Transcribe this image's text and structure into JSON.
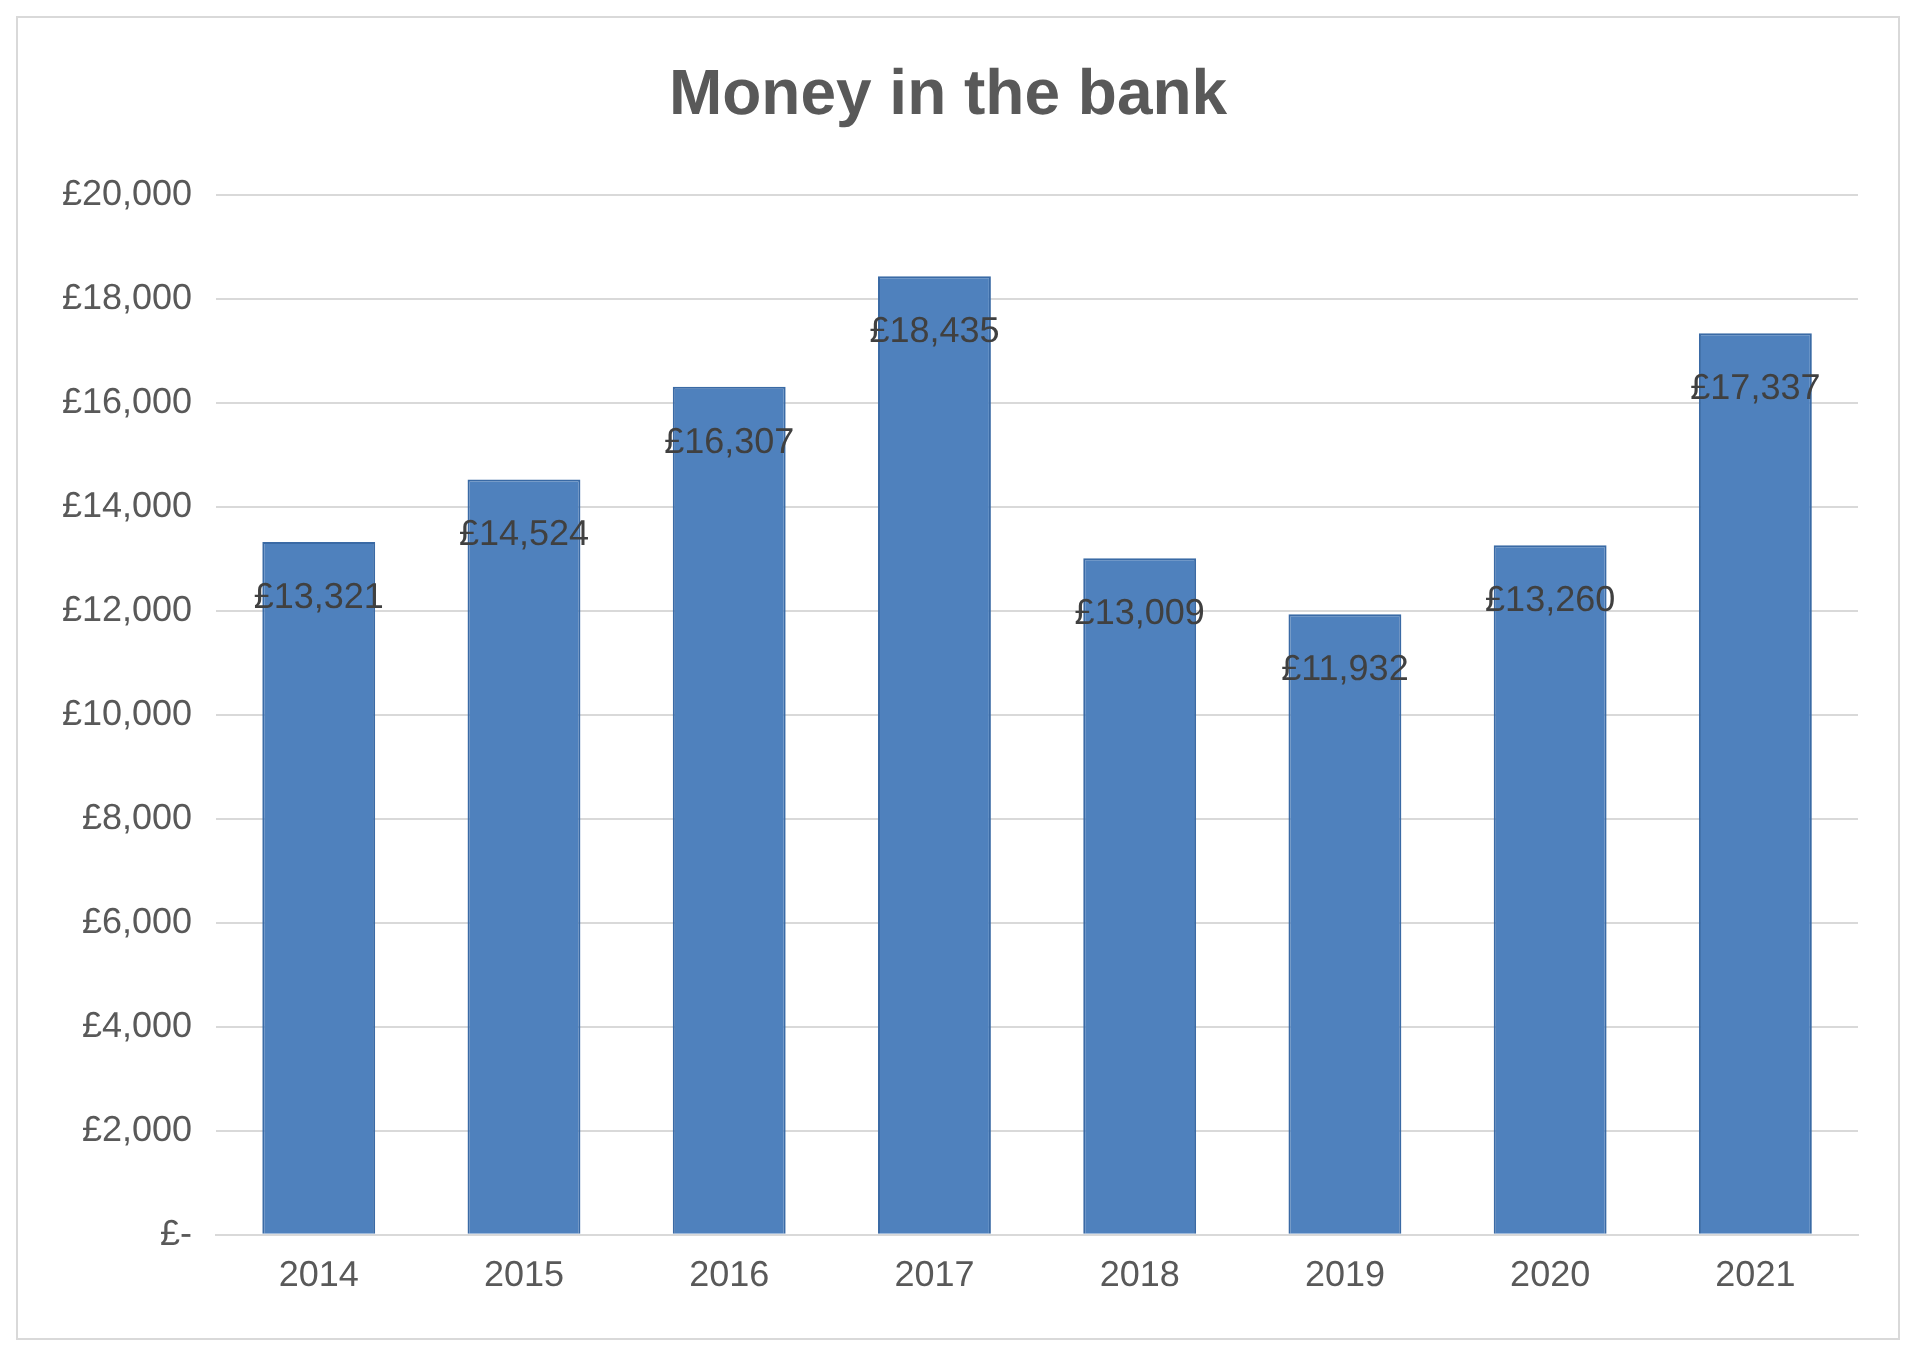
{
  "chart_data": {
    "type": "bar",
    "title": "Money in the bank",
    "categories": [
      "2014",
      "2015",
      "2016",
      "2017",
      "2018",
      "2019",
      "2020",
      "2021"
    ],
    "values": [
      13321,
      14524,
      16307,
      18435,
      13009,
      11932,
      13260,
      17337
    ],
    "value_labels": [
      "£13,321",
      "£14,524",
      "£16,307",
      "£18,435",
      "£13,009",
      "£11,932",
      "£13,260",
      "£17,337"
    ],
    "color": "#4f81bd",
    "ylim": [
      0,
      20000
    ],
    "yticks": [
      {
        "value": 0,
        "label": "£-"
      },
      {
        "value": 2000,
        "label": "£2,000"
      },
      {
        "value": 4000,
        "label": "£4,000"
      },
      {
        "value": 6000,
        "label": "£6,000"
      },
      {
        "value": 8000,
        "label": "£8,000"
      },
      {
        "value": 10000,
        "label": "£10,000"
      },
      {
        "value": 12000,
        "label": "£12,000"
      },
      {
        "value": 14000,
        "label": "£14,000"
      },
      {
        "value": 16000,
        "label": "£16,000"
      },
      {
        "value": 18000,
        "label": "£18,000"
      },
      {
        "value": 20000,
        "label": "£20,000"
      }
    ],
    "grid": "y",
    "legend": false
  }
}
